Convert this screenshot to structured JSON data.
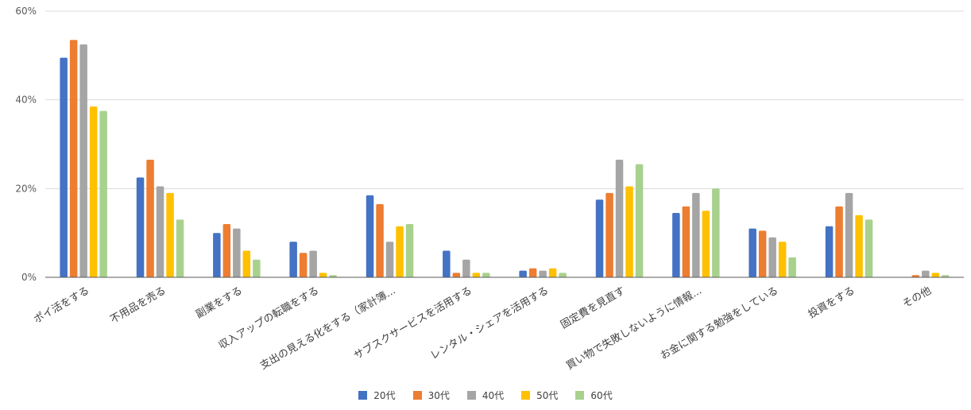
{
  "chart_data": {
    "type": "bar",
    "categories": [
      "ポイ活をする",
      "不用品を売る",
      "副業をする",
      "収入アップの転職をする",
      "支出の見える化をする（家計簿...",
      "サブスクサービスを活用する",
      "レンタル・シェアを活用する",
      "固定費を見直す",
      "買い物で失敗しないように情報...",
      "お金に関する勉強をしている",
      "投資をする",
      "その他"
    ],
    "series": [
      {
        "name": "20代",
        "color": "#4472C4",
        "values": [
          49.5,
          22.5,
          10,
          8,
          18.5,
          6,
          1.5,
          17.5,
          14.5,
          11,
          11.5,
          0
        ]
      },
      {
        "name": "30代",
        "color": "#ED7D31",
        "values": [
          53.5,
          26.5,
          12,
          5.5,
          16.5,
          1,
          2,
          19,
          16,
          10.5,
          16,
          0.5
        ]
      },
      {
        "name": "40代",
        "color": "#A5A5A5",
        "values": [
          52.5,
          20.5,
          11,
          6,
          8,
          4,
          1.5,
          26.5,
          19,
          9,
          19,
          1.5
        ]
      },
      {
        "name": "50代",
        "color": "#FFC000",
        "values": [
          38.5,
          19,
          6,
          1,
          11.5,
          1,
          2,
          20.5,
          15,
          8,
          14,
          1
        ]
      },
      {
        "name": "60代",
        "color": "#A9D18E",
        "values": [
          37.5,
          13,
          4,
          0.5,
          12,
          1,
          1,
          25.5,
          20,
          4.5,
          13,
          0.5
        ]
      }
    ],
    "y_ticks": [
      "0%",
      "20%",
      "40%",
      "60%"
    ],
    "ylim": [
      0,
      60
    ],
    "grid": true,
    "legend_position": "bottom"
  }
}
